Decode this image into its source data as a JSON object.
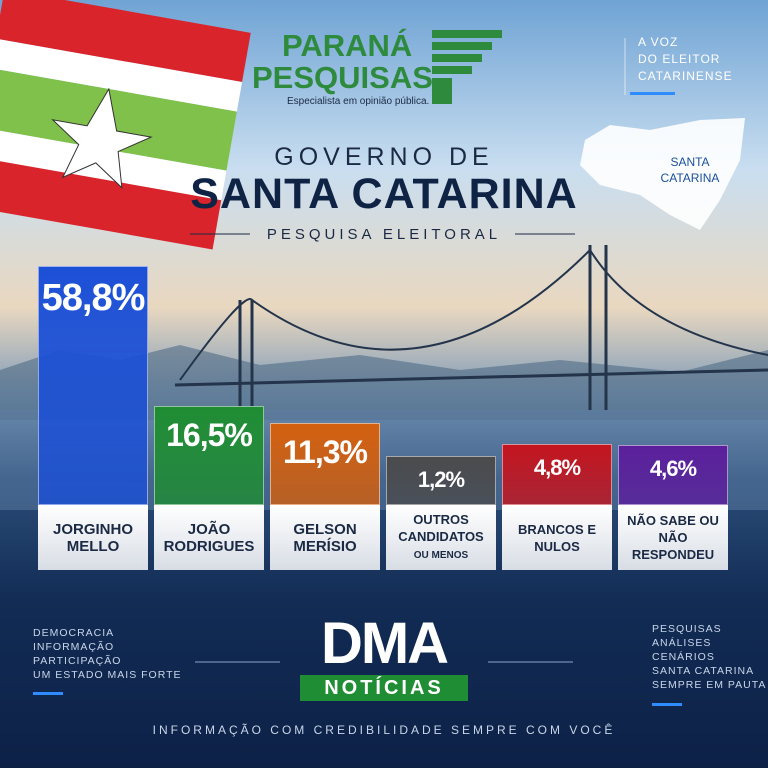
{
  "header": {
    "brand_line1": "PARANÁ",
    "brand_line2": "PESQUISAS",
    "brand_tagline": "Especialista em opinião pública.",
    "corner_lines": [
      "A VOZ",
      "DO ELEITOR",
      "CATARINENSE"
    ],
    "map_label": "SANTA CATARINA",
    "title_small": "GOVERNO DE",
    "title_big": "SANTA CATARINA",
    "subtitle": "PESQUISA ELEITORAL"
  },
  "chart_data": {
    "type": "bar",
    "categories": [
      "JORGINHO MELLO",
      "JOÃO RODRIGUES",
      "GELSON MERÍSIO",
      "OUTROS CANDIDATOS",
      "BRANCOS E NULOS",
      "NÃO SABE OU NÃO RESPONDEU"
    ],
    "category_note": "OU MENOS",
    "values": [
      58.8,
      16.5,
      11.3,
      1.2,
      4.8,
      4.6
    ],
    "value_labels": [
      "58,8%",
      "16,5%",
      "11,3%",
      "1,2%",
      "4,8%",
      "4,6%"
    ],
    "colors": [
      "#1b4fd6",
      "#1f8d33",
      "#d3600f",
      "#4b4b4d",
      "#c3151f",
      "#5b1f9c"
    ]
  },
  "footer": {
    "left_lines": [
      "DEMOCRACIA",
      "INFORMAÇÃO",
      "PARTICIPAÇÃO",
      "UM ESTADO MAIS FORTE"
    ],
    "right_lines": [
      "PESQUISAS",
      "ANÁLISES",
      "CENÁRIOS",
      "SANTA CATARINA",
      "SEMPRE EM PAUTA"
    ],
    "logo_main": "DMA",
    "logo_sub": "NOTÍCIAS",
    "tagline": "INFORMAÇÃO COM CREDIBILIDADE SEMPRE COM VOCÊ"
  }
}
